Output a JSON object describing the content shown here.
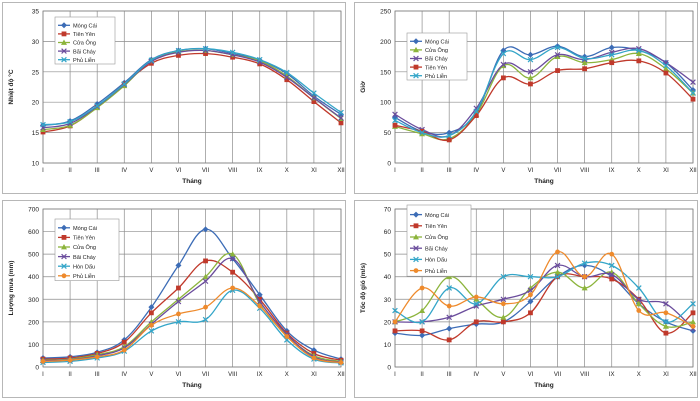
{
  "colors": {
    "mong_cai": "#3c6cb6",
    "tien_yen": "#c0392b",
    "cua_ong": "#8cb43c",
    "bai_chay": "#6a4c9c",
    "hon_dau": "#33a5c8",
    "phu_lien": "#ee8a2c",
    "grid": "#8c8c8c",
    "axis_text": "#222222"
  },
  "chart_data": [
    {
      "type": "line",
      "xlabel": "Tháng",
      "ylabel": "Nhiệt độ °C",
      "ylim": [
        10,
        35
      ],
      "yticks": [
        10,
        15,
        20,
        25,
        30,
        35
      ],
      "grid": true,
      "legend_position": "top-left",
      "categories": [
        "I",
        "II",
        "III",
        "IV",
        "V",
        "VI",
        "VII",
        "VIII",
        "IX",
        "X",
        "XI",
        "XII"
      ],
      "series": [
        {
          "name": "Móng Cái",
          "color_key": "mong_cai",
          "marker": "diamond",
          "values": [
            16.2,
            16.9,
            19.7,
            23.2,
            27.0,
            28.5,
            28.8,
            28.0,
            26.9,
            24.7,
            21.0,
            18.0
          ]
        },
        {
          "name": "Tiên Yên",
          "color_key": "tien_yen",
          "marker": "square",
          "values": [
            15.1,
            16.1,
            19.2,
            23.0,
            26.4,
            27.7,
            28.0,
            27.4,
            26.3,
            23.7,
            20.1,
            16.6
          ]
        },
        {
          "name": "Cửa Ông",
          "color_key": "cua_ong",
          "marker": "triangle",
          "values": [
            15.5,
            16.2,
            19.1,
            22.7,
            26.8,
            28.3,
            28.5,
            27.8,
            26.8,
            24.3,
            20.7,
            17.3
          ]
        },
        {
          "name": "Bãi Cháy",
          "color_key": "bai_chay",
          "marker": "x",
          "values": [
            15.8,
            16.5,
            19.3,
            22.9,
            26.7,
            28.2,
            28.5,
            27.8,
            26.6,
            24.1,
            20.7,
            17.4
          ]
        },
        {
          "name": "Phủ Liễn",
          "color_key": "hon_dau",
          "marker": "x",
          "values": [
            16.3,
            16.8,
            19.4,
            23.0,
            26.9,
            28.5,
            28.8,
            28.2,
            27.0,
            24.9,
            21.5,
            18.3
          ]
        }
      ]
    },
    {
      "type": "line",
      "xlabel": "Tháng",
      "ylabel": "Giờ",
      "ylim": [
        0,
        250
      ],
      "yticks": [
        0,
        50,
        100,
        150,
        200,
        250
      ],
      "grid": true,
      "legend_position": "top-left",
      "categories": [
        "I",
        "II",
        "III",
        "IV",
        "V",
        "VI",
        "VII",
        "VIII",
        "IX",
        "X",
        "XI",
        "XII"
      ],
      "series": [
        {
          "name": "Móng Cái",
          "color_key": "mong_cai",
          "marker": "diamond",
          "values": [
            75,
            52,
            50,
            82,
            185,
            178,
            192,
            175,
            190,
            185,
            165,
            120
          ]
        },
        {
          "name": "Cửa Ông",
          "color_key": "cua_ong",
          "marker": "triangle",
          "values": [
            60,
            48,
            40,
            80,
            160,
            140,
            175,
            165,
            170,
            180,
            155,
            115
          ]
        },
        {
          "name": "Bãi Cháy",
          "color_key": "bai_chay",
          "marker": "x",
          "values": [
            80,
            55,
            45,
            90,
            162,
            150,
            178,
            170,
            182,
            188,
            165,
            133
          ]
        },
        {
          "name": "Tiên Yên",
          "color_key": "tien_yen",
          "marker": "square",
          "values": [
            62,
            52,
            38,
            78,
            140,
            130,
            152,
            155,
            165,
            168,
            148,
            105
          ]
        },
        {
          "name": "Phủ Liễn",
          "color_key": "hon_dau",
          "marker": "x",
          "values": [
            70,
            50,
            45,
            85,
            180,
            170,
            190,
            172,
            178,
            185,
            160,
            115
          ]
        }
      ]
    },
    {
      "type": "line",
      "xlabel": "Tháng",
      "ylabel": "Lượng mưa (mm)",
      "ylim": [
        0,
        700
      ],
      "yticks": [
        0,
        100,
        200,
        300,
        400,
        500,
        600,
        700
      ],
      "grid": true,
      "legend_position": "top-left",
      "categories": [
        "I",
        "II",
        "III",
        "IV",
        "V",
        "VI",
        "VII",
        "VIII",
        "IX",
        "X",
        "XI",
        "XII"
      ],
      "series": [
        {
          "name": "Móng Cái",
          "color_key": "mong_cai",
          "marker": "diamond",
          "values": [
            40,
            45,
            65,
            120,
            265,
            450,
            610,
            480,
            320,
            160,
            75,
            35
          ]
        },
        {
          "name": "Tiên Yên",
          "color_key": "tien_yen",
          "marker": "square",
          "values": [
            35,
            40,
            60,
            110,
            240,
            350,
            470,
            420,
            300,
            150,
            60,
            30
          ]
        },
        {
          "name": "Cửa Ông",
          "color_key": "cua_ong",
          "marker": "triangle",
          "values": [
            30,
            35,
            55,
            90,
            200,
            300,
            400,
            500,
            280,
            140,
            50,
            25
          ]
        },
        {
          "name": "Bãi Cháy",
          "color_key": "bai_chay",
          "marker": "x",
          "values": [
            28,
            32,
            50,
            85,
            190,
            290,
            380,
            480,
            290,
            145,
            45,
            22
          ]
        },
        {
          "name": "Hòn Dấu",
          "color_key": "hon_dau",
          "marker": "x",
          "values": [
            20,
            25,
            40,
            70,
            160,
            200,
            210,
            340,
            260,
            120,
            35,
            18
          ]
        },
        {
          "name": "Phủ Liễn",
          "color_key": "phu_lien",
          "marker": "circle",
          "values": [
            25,
            30,
            45,
            75,
            185,
            235,
            265,
            350,
            270,
            135,
            40,
            20
          ]
        }
      ]
    },
    {
      "type": "line",
      "xlabel": "Tháng",
      "ylabel": "Tốc độ gió (m/s)",
      "ylim": [
        0,
        70
      ],
      "yticks": [
        0,
        10,
        20,
        30,
        40,
        50,
        60,
        70
      ],
      "grid": true,
      "legend_position": "top-left",
      "categories": [
        "I",
        "II",
        "III",
        "IV",
        "V",
        "VI",
        "VII",
        "VIII",
        "IX",
        "X",
        "XI",
        "XII"
      ],
      "series": [
        {
          "name": "Móng Cái",
          "color_key": "mong_cai",
          "marker": "diamond",
          "values": [
            15,
            14,
            17,
            19,
            20,
            29,
            40,
            45,
            40,
            28,
            20,
            16
          ]
        },
        {
          "name": "Tiên Yên",
          "color_key": "tien_yen",
          "marker": "square",
          "values": [
            16,
            16,
            12,
            20,
            20,
            24,
            40,
            40,
            39,
            30,
            15,
            24
          ]
        },
        {
          "name": "Cửa Ông",
          "color_key": "cua_ong",
          "marker": "triangle",
          "values": [
            20,
            25,
            40,
            30,
            22,
            35,
            42,
            35,
            42,
            28,
            18,
            20
          ]
        },
        {
          "name": "Bãi Cháy",
          "color_key": "bai_chay",
          "marker": "x",
          "values": [
            20,
            20,
            22,
            27,
            30,
            34,
            45,
            40,
            41,
            30,
            28,
            17
          ]
        },
        {
          "name": "Hòn Dấu",
          "color_key": "hon_dau",
          "marker": "x",
          "values": [
            25,
            20,
            35,
            28,
            40,
            40,
            40,
            46,
            45,
            35,
            20,
            28
          ]
        },
        {
          "name": "Phủ Liễn",
          "color_key": "phu_lien",
          "marker": "circle",
          "values": [
            20,
            35,
            27,
            31,
            28,
            32,
            51,
            40,
            50,
            25,
            24,
            18
          ]
        }
      ]
    }
  ]
}
